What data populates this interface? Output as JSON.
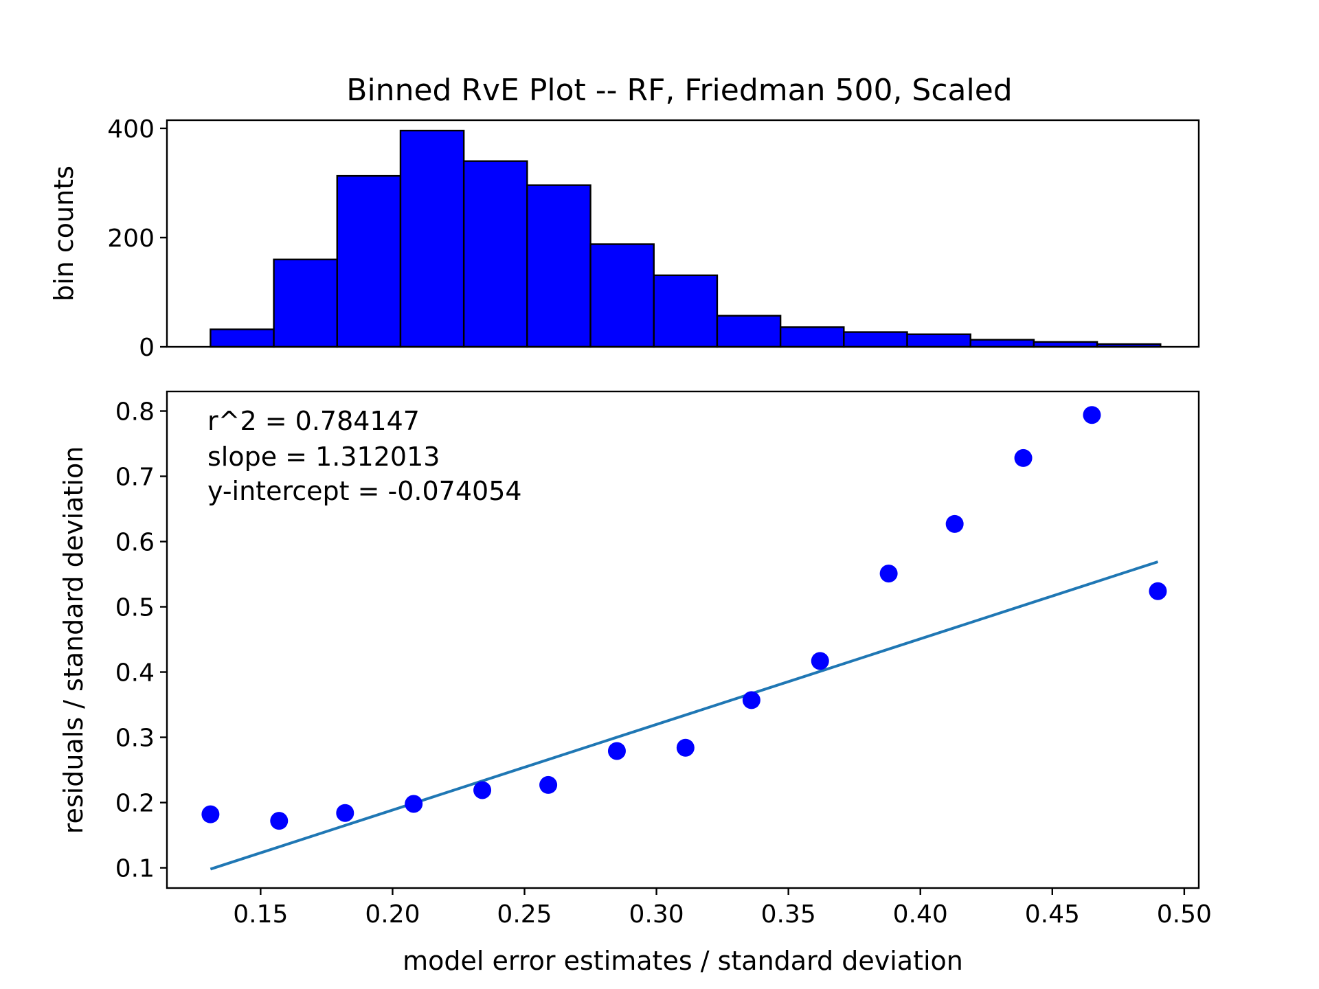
{
  "title": "Binned RvE Plot -- RF, Friedman 500, Scaled",
  "colors": {
    "bars": "#0000ff",
    "bar_edge": "#000000",
    "points": "#0000ff",
    "fit_line": "#1f77b4"
  },
  "chart_data": [
    {
      "type": "bar",
      "ylabel": "bin counts",
      "xlabel": "",
      "ylim": [
        0,
        415
      ],
      "xlim": [
        0.1145,
        0.5055
      ],
      "yticks": [
        0,
        200,
        400
      ],
      "bin_edges": [
        0.131,
        0.155,
        0.179,
        0.203,
        0.227,
        0.251,
        0.275,
        0.299,
        0.323,
        0.347,
        0.371,
        0.395,
        0.419,
        0.443,
        0.467,
        0.491
      ],
      "values": [
        32,
        160,
        313,
        396,
        340,
        296,
        188,
        131,
        57,
        36,
        27,
        23,
        13,
        9,
        5
      ],
      "grid": false
    },
    {
      "type": "scatter",
      "xlabel": "model error estimates / standard deviation",
      "ylabel": "residuals / standard deviation",
      "xlim": [
        0.1145,
        0.5055
      ],
      "ylim": [
        0.069,
        0.83
      ],
      "xticks": [
        "0.15",
        "0.20",
        "0.25",
        "0.30",
        "0.35",
        "0.40",
        "0.45",
        "0.50"
      ],
      "yticks": [
        "0.1",
        "0.2",
        "0.3",
        "0.4",
        "0.5",
        "0.6",
        "0.7",
        "0.8"
      ],
      "series": [
        {
          "x": [
            0.131,
            0.157,
            0.182,
            0.208,
            0.234,
            0.259,
            0.285,
            0.311,
            0.336,
            0.362,
            0.388,
            0.413,
            0.439,
            0.465,
            0.49
          ],
          "y": [
            0.182,
            0.172,
            0.184,
            0.198,
            0.219,
            0.227,
            0.279,
            0.284,
            0.357,
            0.417,
            0.551,
            0.627,
            0.728,
            0.794,
            0.524
          ]
        }
      ],
      "fit_line": {
        "x": [
          0.131,
          0.49
        ],
        "y": [
          0.098,
          0.569
        ]
      },
      "annotations": [
        "r^2 = 0.784147",
        "slope = 1.312013",
        "y-intercept = -0.074054"
      ],
      "grid": false
    }
  ]
}
